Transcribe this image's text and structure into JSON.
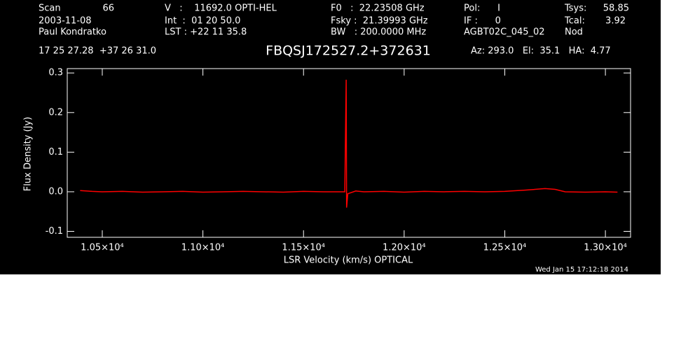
{
  "chart_data": {
    "type": "line",
    "title": "FBQSJ172527.2+372631",
    "header": [
      "Scan",
      "66",
      "2003-11-08",
      "Paul Kondratko",
      "V   :    11692.0 OPTI-HEL",
      "Int  :  01 20 50.0",
      "LST : +22 11 35.8",
      "F0   :  22.23508 GHz",
      "Fsky :  21.39993 GHz",
      "BW   : 200.0000 MHz",
      "Pol:      I",
      "IF :      0",
      "AGBT02C_045_02",
      "Tsys:",
      "58.85",
      "Tcal:",
      "3.92",
      "Nod",
      "17 25 27.28  +37 26 31.0",
      "Az: 293.0   El:  35.1   HA:  4.77"
    ],
    "x_label": "LSR Velocity (km/s) OPTICAL",
    "y_label": "Flux Density (Jy)",
    "timestamp": "Wed Jan 15 17:12:18 2014",
    "x": [
      10390,
      10450,
      10500,
      10600,
      10700,
      10800,
      10900,
      11000,
      11100,
      11200,
      11300,
      11400,
      11500,
      11600,
      11705,
      11712,
      11714,
      11720,
      11760,
      11800,
      11900,
      12000,
      12100,
      12200,
      12300,
      12400,
      12500,
      12600,
      12700,
      12750,
      12800,
      12900,
      13000,
      13060
    ],
    "series": [
      {
        "name": "spectrum",
        "color": "#ff0000",
        "values": [
          0.003,
          0.001,
          0.0,
          0.001,
          -0.001,
          0.0,
          0.001,
          -0.001,
          0.0,
          0.001,
          0.0,
          -0.001,
          0.001,
          0.0,
          0.0,
          0.283,
          -0.04,
          -0.005,
          0.002,
          0.0,
          0.001,
          -0.001,
          0.001,
          0.0,
          0.001,
          0.0,
          0.001,
          0.004,
          0.008,
          0.006,
          0.0,
          -0.001,
          0.0,
          -0.001
        ]
      }
    ],
    "xlim": [
      10326,
      13125
    ],
    "ylim": [
      -0.115,
      0.311
    ],
    "xticks": [
      {
        "value": 10500,
        "label": "1.05×10⁴"
      },
      {
        "value": 11000,
        "label": "1.10×10⁴"
      },
      {
        "value": 11500,
        "label": "1.15×10⁴"
      },
      {
        "value": 12000,
        "label": "1.20×10⁴"
      },
      {
        "value": 12500,
        "label": "1.25×10⁴"
      },
      {
        "value": 13000,
        "label": "1.30×10⁴"
      }
    ],
    "yticks": [
      {
        "value": -0.1,
        "label": "-0.1"
      },
      {
        "value": 0.0,
        "label": "0.0"
      },
      {
        "value": 0.1,
        "label": "0.1"
      },
      {
        "value": 0.2,
        "label": "0.2"
      },
      {
        "value": 0.3,
        "label": "0.3"
      }
    ]
  }
}
